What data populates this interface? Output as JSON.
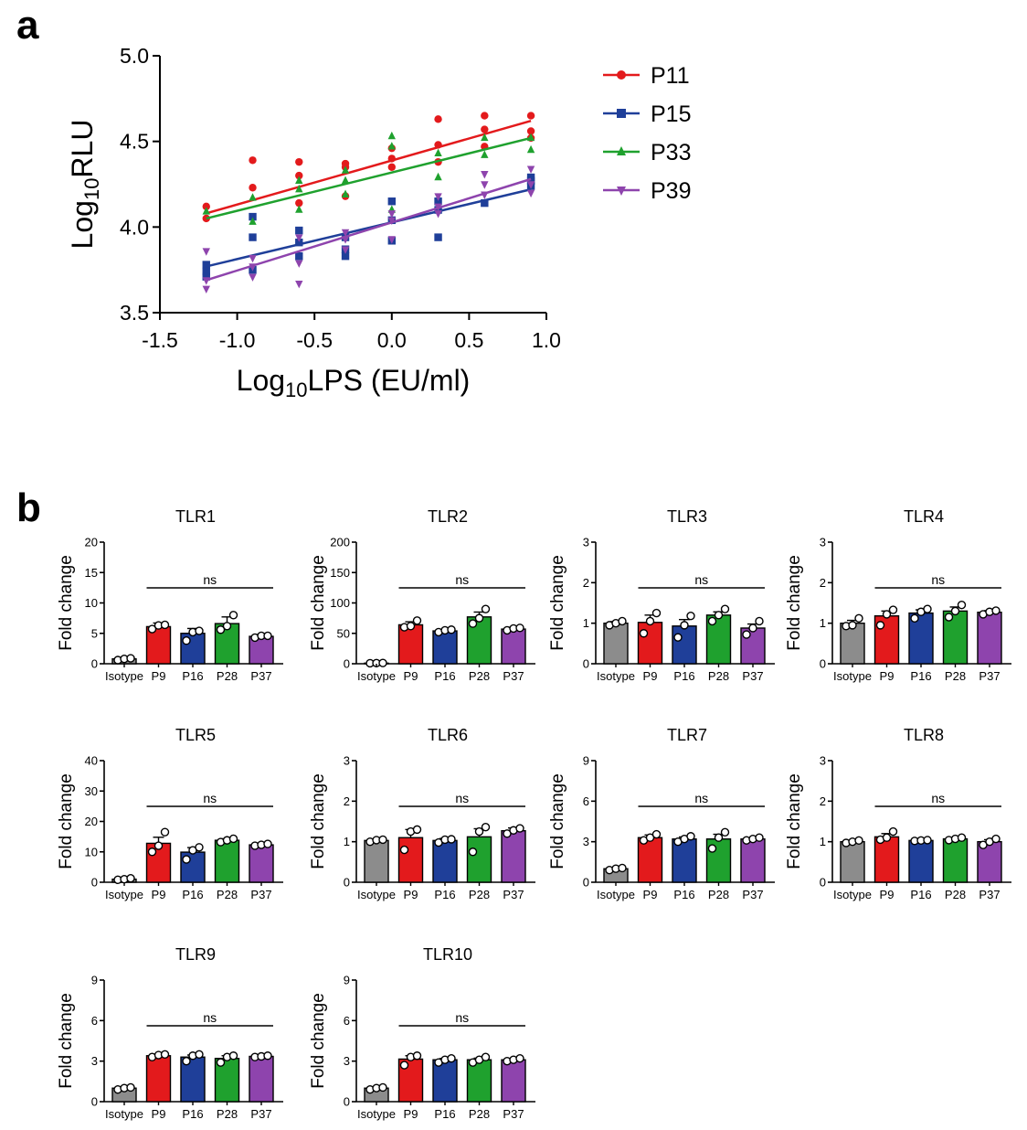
{
  "panels": {
    "a": {
      "label": "a"
    },
    "b": {
      "label": "b"
    }
  },
  "colors": {
    "P11": "#e31a1c",
    "P15": "#1f3f99",
    "P33": "#1fa12e",
    "P39": "#8e44ad",
    "Isotype": "#8c8c8c",
    "P9": "#e31a1c",
    "P16": "#1f3f99",
    "P28": "#1fa12e",
    "P37": "#8e44ad"
  },
  "chart_data": [
    {
      "id": "a",
      "type": "scatter",
      "title": "",
      "ylabel_main": "Log",
      "ylabel_sub": "10",
      "ylabel_rest": "RLU",
      "xlabel_main": "Log",
      "xlabel_sub": "10",
      "xlabel_rest": "LPS (EU/ml)",
      "xlim": [
        -1.5,
        1.0
      ],
      "ylim": [
        3.5,
        5.0
      ],
      "xticks": [
        "-1.5",
        "-1.0",
        "-0.5",
        "0.0",
        "0.5",
        "1.0"
      ],
      "xtick_values": [
        -1.5,
        -1.0,
        -0.5,
        0.0,
        0.5,
        1.0
      ],
      "yticks": [
        "3.5",
        "4.0",
        "4.5",
        "5.0"
      ],
      "ytick_values": [
        3.5,
        4.0,
        4.5,
        5.0
      ],
      "legend_position": "right",
      "series": [
        {
          "name": "P11",
          "marker": "circle",
          "fit": [
            [
              -1.2,
              4.08
            ],
            [
              0.9,
              4.62
            ]
          ],
          "points": [
            [
              -1.2,
              4.12
            ],
            [
              -1.2,
              4.05
            ],
            [
              -0.9,
              4.39
            ],
            [
              -0.9,
              4.23
            ],
            [
              -0.6,
              4.38
            ],
            [
              -0.6,
              4.3
            ],
            [
              -0.6,
              4.14
            ],
            [
              -0.3,
              4.37
            ],
            [
              -0.3,
              4.35
            ],
            [
              -0.3,
              4.18
            ],
            [
              0,
              4.46
            ],
            [
              0,
              4.4
            ],
            [
              0,
              4.35
            ],
            [
              0.3,
              4.63
            ],
            [
              0.3,
              4.48
            ],
            [
              0.3,
              4.38
            ],
            [
              0.6,
              4.65
            ],
            [
              0.6,
              4.57
            ],
            [
              0.6,
              4.47
            ],
            [
              0.9,
              4.65
            ],
            [
              0.9,
              4.56
            ],
            [
              0.9,
              4.52
            ]
          ]
        },
        {
          "name": "P15",
          "marker": "square",
          "fit": [
            [
              -1.2,
              3.77
            ],
            [
              0.9,
              4.22
            ]
          ],
          "points": [
            [
              -1.2,
              3.78
            ],
            [
              -1.2,
              3.74
            ],
            [
              -1.2,
              3.71
            ],
            [
              -0.9,
              4.06
            ],
            [
              -0.9,
              3.94
            ],
            [
              -0.9,
              3.75
            ],
            [
              -0.6,
              3.98
            ],
            [
              -0.6,
              3.91
            ],
            [
              -0.6,
              3.83
            ],
            [
              -0.3,
              3.94
            ],
            [
              -0.3,
              3.87
            ],
            [
              -0.3,
              3.83
            ],
            [
              0,
              4.15
            ],
            [
              0,
              4.04
            ],
            [
              0,
              3.92
            ],
            [
              0.3,
              4.15
            ],
            [
              0.3,
              4.1
            ],
            [
              0.3,
              3.94
            ],
            [
              0.6,
              4.14
            ],
            [
              0.9,
              4.29
            ],
            [
              0.9,
              4.27
            ],
            [
              0.9,
              4.24
            ]
          ]
        },
        {
          "name": "P33",
          "marker": "triangle-up",
          "fit": [
            [
              -1.2,
              4.05
            ],
            [
              0.9,
              4.52
            ]
          ],
          "points": [
            [
              -1.2,
              4.09
            ],
            [
              -0.9,
              4.17
            ],
            [
              -0.9,
              4.03
            ],
            [
              -0.6,
              4.27
            ],
            [
              -0.6,
              4.22
            ],
            [
              -0.6,
              4.1
            ],
            [
              -0.3,
              4.33
            ],
            [
              -0.3,
              4.27
            ],
            [
              -0.3,
              4.19
            ],
            [
              0,
              4.53
            ],
            [
              0,
              4.47
            ],
            [
              0,
              4.1
            ],
            [
              0.3,
              4.43
            ],
            [
              0.3,
              4.29
            ],
            [
              0.6,
              4.52
            ],
            [
              0.6,
              4.42
            ],
            [
              0.9,
              4.52
            ],
            [
              0.9,
              4.45
            ]
          ]
        },
        {
          "name": "P39",
          "marker": "triangle-down",
          "fit": [
            [
              -1.2,
              3.69
            ],
            [
              0.9,
              4.28
            ]
          ],
          "points": [
            [
              -1.2,
              3.86
            ],
            [
              -1.2,
              3.69
            ],
            [
              -1.2,
              3.64
            ],
            [
              -0.9,
              3.82
            ],
            [
              -0.9,
              3.77
            ],
            [
              -0.9,
              3.71
            ],
            [
              -0.6,
              3.94
            ],
            [
              -0.6,
              3.79
            ],
            [
              -0.6,
              3.67
            ],
            [
              -0.3,
              3.97
            ],
            [
              -0.3,
              3.93
            ],
            [
              -0.3,
              3.87
            ],
            [
              0,
              4.08
            ],
            [
              0,
              4.04
            ],
            [
              0,
              3.93
            ],
            [
              0.3,
              4.18
            ],
            [
              0.3,
              4.12
            ],
            [
              0.3,
              4.08
            ],
            [
              0.6,
              4.31
            ],
            [
              0.6,
              4.25
            ],
            [
              0.6,
              4.19
            ],
            [
              0.9,
              4.34
            ],
            [
              0.9,
              4.25
            ],
            [
              0.9,
              4.2
            ]
          ]
        }
      ]
    },
    {
      "id": "TLR1",
      "type": "bar",
      "title": "TLR1",
      "ylabel": "Fold change",
      "categories": [
        "Isotype",
        "P9",
        "P16",
        "P28",
        "P37"
      ],
      "ylim": [
        0,
        20
      ],
      "yticks": [
        "0",
        "5",
        "10",
        "15",
        "20"
      ],
      "ytick_values": [
        0,
        5,
        10,
        15,
        20
      ],
      "values": [
        0.8,
        6.1,
        5.0,
        6.6,
        4.5
      ],
      "errors": [
        0.2,
        0.6,
        0.8,
        1.1,
        0.3
      ],
      "points": [
        [
          0.6,
          0.8,
          0.9
        ],
        [
          5.7,
          6.3,
          6.4
        ],
        [
          3.8,
          5.2,
          5.4
        ],
        [
          5.6,
          6.2,
          8.0
        ],
        [
          4.3,
          4.6,
          4.6
        ]
      ],
      "sig_label": "ns",
      "sig_from": 1,
      "sig_to": 4
    },
    {
      "id": "TLR2",
      "type": "bar",
      "title": "TLR2",
      "ylabel": "Fold change",
      "categories": [
        "Isotype",
        "P9",
        "P16",
        "P28",
        "P37"
      ],
      "ylim": [
        0,
        200
      ],
      "yticks": [
        "0",
        "50",
        "100",
        "150",
        "200"
      ],
      "ytick_values": [
        0,
        50,
        100,
        150,
        200
      ],
      "values": [
        1.0,
        64,
        54,
        77,
        57
      ],
      "errors": [
        0.3,
        5,
        2,
        8,
        3
      ],
      "points": [
        [
          0.8,
          1.0,
          1.2
        ],
        [
          60,
          62,
          71
        ],
        [
          52,
          55,
          56
        ],
        [
          66,
          75,
          90
        ],
        [
          55,
          58,
          59
        ]
      ],
      "sig_label": "ns",
      "sig_from": 1,
      "sig_to": 4
    },
    {
      "id": "TLR3",
      "type": "bar",
      "title": "TLR3",
      "ylabel": "Fold change",
      "categories": [
        "Isotype",
        "P9",
        "P16",
        "P28",
        "P37"
      ],
      "ylim": [
        0,
        3
      ],
      "yticks": [
        "0",
        "1",
        "2",
        "3"
      ],
      "ytick_values": [
        0,
        1,
        2,
        3
      ],
      "values": [
        1.0,
        1.02,
        0.93,
        1.2,
        0.88
      ],
      "errors": [
        0.04,
        0.18,
        0.16,
        0.08,
        0.1
      ],
      "points": [
        [
          0.95,
          1.0,
          1.05
        ],
        [
          0.75,
          1.05,
          1.25
        ],
        [
          0.65,
          0.95,
          1.18
        ],
        [
          1.05,
          1.2,
          1.35
        ],
        [
          0.72,
          0.88,
          1.05
        ]
      ],
      "sig_label": "ns",
      "sig_from": 1,
      "sig_to": 4
    },
    {
      "id": "TLR4",
      "type": "bar",
      "title": "TLR4",
      "ylabel": "Fold change",
      "categories": [
        "Isotype",
        "P9",
        "P16",
        "P28",
        "P37"
      ],
      "ylim": [
        0,
        3
      ],
      "yticks": [
        "0",
        "1",
        "2",
        "3"
      ],
      "ytick_values": [
        0,
        1,
        2,
        3
      ],
      "values": [
        1.0,
        1.18,
        1.25,
        1.3,
        1.27
      ],
      "errors": [
        0.07,
        0.12,
        0.08,
        0.1,
        0.04
      ],
      "points": [
        [
          0.93,
          0.95,
          1.12
        ],
        [
          0.95,
          1.22,
          1.33
        ],
        [
          1.12,
          1.28,
          1.35
        ],
        [
          1.15,
          1.3,
          1.45
        ],
        [
          1.22,
          1.28,
          1.31
        ]
      ],
      "sig_label": "ns",
      "sig_from": 1,
      "sig_to": 4
    },
    {
      "id": "TLR5",
      "type": "bar",
      "title": "TLR5",
      "ylabel": "Fold change",
      "categories": [
        "Isotype",
        "P9",
        "P16",
        "P28",
        "P37"
      ],
      "ylim": [
        0,
        40
      ],
      "yticks": [
        "0",
        "10",
        "20",
        "30",
        "40"
      ],
      "ytick_values": [
        0,
        10,
        20,
        30,
        40
      ],
      "values": [
        1.0,
        12.8,
        9.9,
        13.8,
        12.3
      ],
      "errors": [
        0.2,
        2.0,
        1.5,
        0.5,
        0.3
      ],
      "points": [
        [
          0.8,
          1.0,
          1.3
        ],
        [
          10,
          12,
          16.5
        ],
        [
          7.5,
          10.5,
          11.5
        ],
        [
          13.2,
          13.8,
          14.3
        ],
        [
          12,
          12.3,
          12.6
        ]
      ],
      "sig_label": "ns",
      "sig_from": 1,
      "sig_to": 4
    },
    {
      "id": "TLR6",
      "type": "bar",
      "title": "TLR6",
      "ylabel": "Fold change",
      "categories": [
        "Isotype",
        "P9",
        "P16",
        "P28",
        "P37"
      ],
      "ylim": [
        0,
        3
      ],
      "yticks": [
        "0",
        "1",
        "2",
        "3"
      ],
      "ytick_values": [
        0,
        1,
        2,
        3
      ],
      "values": [
        1.03,
        1.1,
        1.03,
        1.12,
        1.27
      ],
      "errors": [
        0.03,
        0.2,
        0.05,
        0.2,
        0.07
      ],
      "points": [
        [
          1.0,
          1.04,
          1.05
        ],
        [
          0.8,
          1.25,
          1.3
        ],
        [
          0.98,
          1.05,
          1.06
        ],
        [
          0.75,
          1.25,
          1.36
        ],
        [
          1.2,
          1.28,
          1.33
        ]
      ],
      "sig_label": "ns",
      "sig_from": 1,
      "sig_to": 4
    },
    {
      "id": "TLR7",
      "type": "bar",
      "title": "TLR7",
      "ylabel": "Fold change",
      "categories": [
        "Isotype",
        "P9",
        "P16",
        "P28",
        "P37"
      ],
      "ylim": [
        0,
        9
      ],
      "yticks": [
        "0",
        "3",
        "6",
        "9"
      ],
      "ytick_values": [
        0,
        3,
        6,
        9
      ],
      "values": [
        1.0,
        3.3,
        3.2,
        3.2,
        3.2
      ],
      "errors": [
        0.05,
        0.2,
        0.15,
        0.35,
        0.1
      ],
      "points": [
        [
          0.9,
          1.0,
          1.05
        ],
        [
          3.1,
          3.3,
          3.55
        ],
        [
          3.0,
          3.2,
          3.4
        ],
        [
          2.5,
          3.3,
          3.7
        ],
        [
          3.1,
          3.2,
          3.3
        ]
      ],
      "sig_label": "ns",
      "sig_from": 1,
      "sig_to": 4
    },
    {
      "id": "TLR8",
      "type": "bar",
      "title": "TLR8",
      "ylabel": "Fold change",
      "categories": [
        "Isotype",
        "P9",
        "P16",
        "P28",
        "P37"
      ],
      "ylim": [
        0,
        3
      ],
      "yticks": [
        "0",
        "1",
        "2",
        "3"
      ],
      "ytick_values": [
        0,
        1,
        2,
        3
      ],
      "values": [
        1.0,
        1.12,
        1.03,
        1.07,
        1.0
      ],
      "errors": [
        0.03,
        0.08,
        0.01,
        0.03,
        0.05
      ],
      "points": [
        [
          0.97,
          1.0,
          1.03
        ],
        [
          1.05,
          1.1,
          1.25
        ],
        [
          1.02,
          1.03,
          1.04
        ],
        [
          1.04,
          1.07,
          1.1
        ],
        [
          0.92,
          1.0,
          1.07
        ]
      ],
      "sig_label": "ns",
      "sig_from": 1,
      "sig_to": 4
    },
    {
      "id": "TLR9",
      "type": "bar",
      "title": "TLR9",
      "ylabel": "Fold change",
      "categories": [
        "Isotype",
        "P9",
        "P16",
        "P28",
        "P37"
      ],
      "ylim": [
        0,
        9
      ],
      "yticks": [
        "0",
        "3",
        "6",
        "9"
      ],
      "ytick_values": [
        0,
        3,
        6,
        9
      ],
      "values": [
        1.0,
        3.4,
        3.3,
        3.2,
        3.35
      ],
      "errors": [
        0.05,
        0.1,
        0.15,
        0.2,
        0.05
      ],
      "points": [
        [
          0.9,
          1.0,
          1.05
        ],
        [
          3.3,
          3.45,
          3.5
        ],
        [
          3.0,
          3.4,
          3.5
        ],
        [
          2.9,
          3.3,
          3.4
        ],
        [
          3.3,
          3.35,
          3.4
        ]
      ],
      "sig_label": "ns",
      "sig_from": 1,
      "sig_to": 4
    },
    {
      "id": "TLR10",
      "type": "bar",
      "title": "TLR10",
      "ylabel": "Fold change",
      "categories": [
        "Isotype",
        "P9",
        "P16",
        "P28",
        "P37"
      ],
      "ylim": [
        0,
        9
      ],
      "yticks": [
        "0",
        "3",
        "6",
        "9"
      ],
      "ytick_values": [
        0,
        3,
        6,
        9
      ],
      "values": [
        1.0,
        3.15,
        3.1,
        3.1,
        3.1
      ],
      "errors": [
        0.05,
        0.25,
        0.1,
        0.12,
        0.06
      ],
      "points": [
        [
          0.9,
          1.0,
          1.05
        ],
        [
          2.7,
          3.3,
          3.4
        ],
        [
          2.9,
          3.1,
          3.2
        ],
        [
          2.9,
          3.1,
          3.3
        ],
        [
          3.0,
          3.1,
          3.2
        ]
      ],
      "sig_label": "ns",
      "sig_from": 1,
      "sig_to": 4
    }
  ]
}
